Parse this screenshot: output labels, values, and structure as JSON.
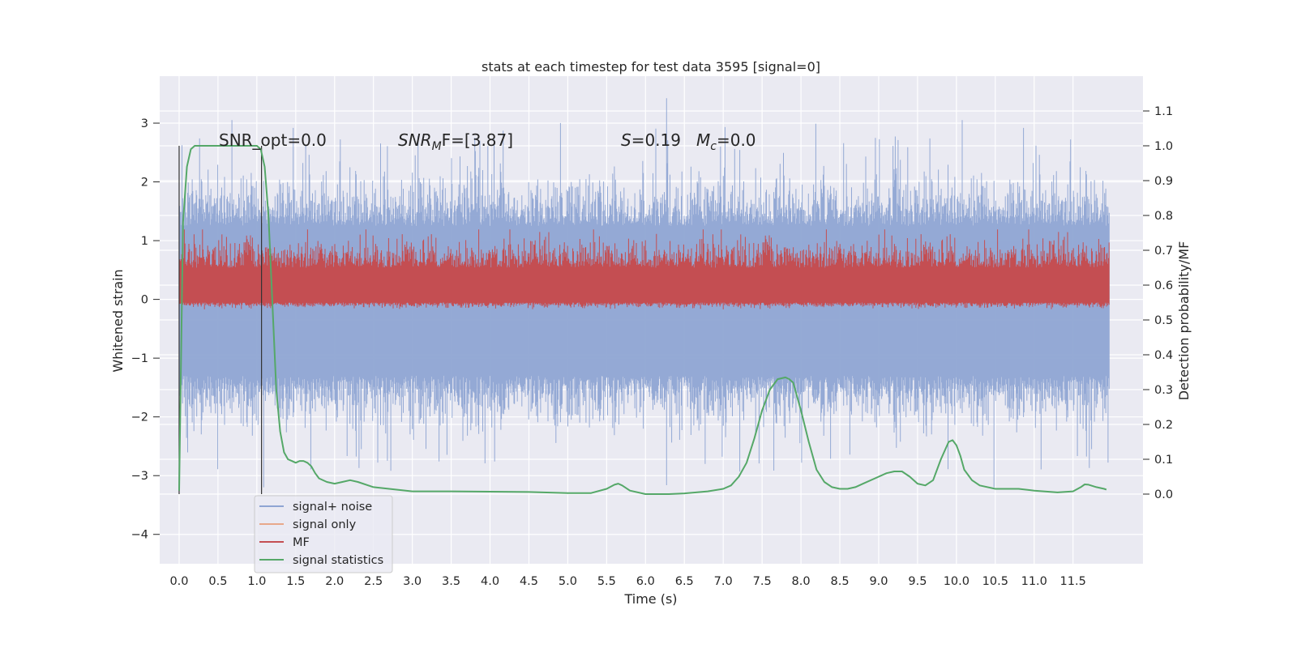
{
  "chart_data": {
    "type": "line",
    "title": "stats at each timestep for test data 3595 [signal=0]",
    "xlabel": "Time (s)",
    "ylabel": "Whitened strain",
    "ylabel_right": "Detection probability/MF",
    "xlim": [
      -0.25,
      12.4
    ],
    "ylim": [
      -4.5,
      3.8
    ],
    "ylim_right": [
      -0.2,
      1.2
    ],
    "x_ticks": [
      "0.0",
      "0.5",
      "1.0",
      "1.5",
      "2.0",
      "2.5",
      "3.0",
      "3.5",
      "4.0",
      "4.5",
      "5.0",
      "5.5",
      "6.0",
      "6.5",
      "7.0",
      "7.5",
      "8.0",
      "8.5",
      "9.0",
      "9.5",
      "10.0",
      "10.5",
      "11.0",
      "11.5"
    ],
    "y_ticks": [
      "3",
      "2",
      "1",
      "0",
      "−1",
      "−2",
      "−3",
      "−4"
    ],
    "y_ticks_right": [
      "1.1",
      "1.0",
      "0.9",
      "0.8",
      "0.7",
      "0.6",
      "0.5",
      "0.4",
      "0.3",
      "0.2",
      "0.1",
      "0.0"
    ],
    "grid": true,
    "legend_position": "lower-left",
    "annotations": {
      "snr_opt": "SNR_opt=0.0",
      "snr_mf_main": "SNR",
      "snr_mf_sub": "M",
      "snr_mf_rest": "F=[3.87]",
      "s_label": "S",
      "s_value": "=0.19",
      "mc_label": "M",
      "mc_sub": "c",
      "mc_value": "=0.0"
    },
    "vertical_lines": [
      0.0,
      1.06
    ],
    "series": [
      {
        "name": "signal+ noise",
        "color": "#8fa5d3",
        "axis": "left",
        "description_range": [
          -2.7,
          3.4
        ],
        "x_range": [
          0.0,
          11.97
        ]
      },
      {
        "name": "signal only",
        "color": "#e8a88a",
        "axis": "left",
        "values": []
      },
      {
        "name": "MF",
        "color": "#c44e52",
        "axis": "right",
        "baseline": 0.6,
        "x_range": [
          0.0,
          11.97
        ]
      },
      {
        "name": "signal statistics",
        "color": "#55a868",
        "axis": "right",
        "x": [
          0.0,
          0.05,
          0.1,
          0.15,
          0.2,
          0.3,
          0.4,
          0.5,
          0.6,
          0.7,
          0.8,
          0.9,
          0.95,
          1.0,
          1.05,
          1.1,
          1.15,
          1.2,
          1.25,
          1.3,
          1.35,
          1.4,
          1.45,
          1.5,
          1.55,
          1.6,
          1.65,
          1.7,
          1.75,
          1.8,
          1.9,
          2.0,
          2.1,
          2.2,
          2.3,
          2.5,
          3.0,
          3.5,
          4.0,
          4.5,
          5.0,
          5.3,
          5.5,
          5.6,
          5.65,
          5.7,
          5.8,
          6.0,
          6.3,
          6.5,
          6.8,
          7.0,
          7.1,
          7.2,
          7.3,
          7.4,
          7.5,
          7.6,
          7.7,
          7.8,
          7.85,
          7.9,
          8.0,
          8.1,
          8.2,
          8.3,
          8.4,
          8.5,
          8.6,
          8.7,
          8.8,
          9.0,
          9.1,
          9.2,
          9.3,
          9.4,
          9.5,
          9.6,
          9.7,
          9.8,
          9.9,
          9.95,
          10.0,
          10.05,
          10.1,
          10.2,
          10.3,
          10.5,
          10.8,
          11.0,
          11.3,
          11.5,
          11.6,
          11.65,
          11.7,
          11.8,
          11.9,
          11.93
        ],
        "values": [
          0.01,
          0.78,
          0.94,
          0.99,
          1.0,
          1.0,
          1.0,
          1.0,
          1.0,
          1.0,
          1.0,
          1.0,
          1.0,
          1.0,
          0.99,
          0.94,
          0.8,
          0.55,
          0.3,
          0.18,
          0.12,
          0.1,
          0.095,
          0.09,
          0.095,
          0.095,
          0.09,
          0.08,
          0.06,
          0.045,
          0.035,
          0.03,
          0.035,
          0.04,
          0.035,
          0.02,
          0.008,
          0.008,
          0.007,
          0.006,
          0.003,
          0.003,
          0.015,
          0.027,
          0.03,
          0.025,
          0.01,
          0.0,
          0.0,
          0.002,
          0.008,
          0.015,
          0.025,
          0.05,
          0.09,
          0.16,
          0.24,
          0.3,
          0.33,
          0.335,
          0.33,
          0.32,
          0.24,
          0.15,
          0.07,
          0.035,
          0.02,
          0.015,
          0.015,
          0.02,
          0.03,
          0.05,
          0.06,
          0.065,
          0.065,
          0.05,
          0.03,
          0.025,
          0.04,
          0.1,
          0.15,
          0.155,
          0.14,
          0.11,
          0.07,
          0.04,
          0.025,
          0.015,
          0.015,
          0.01,
          0.005,
          0.008,
          0.02,
          0.028,
          0.027,
          0.02,
          0.015,
          0.013
        ]
      }
    ]
  }
}
